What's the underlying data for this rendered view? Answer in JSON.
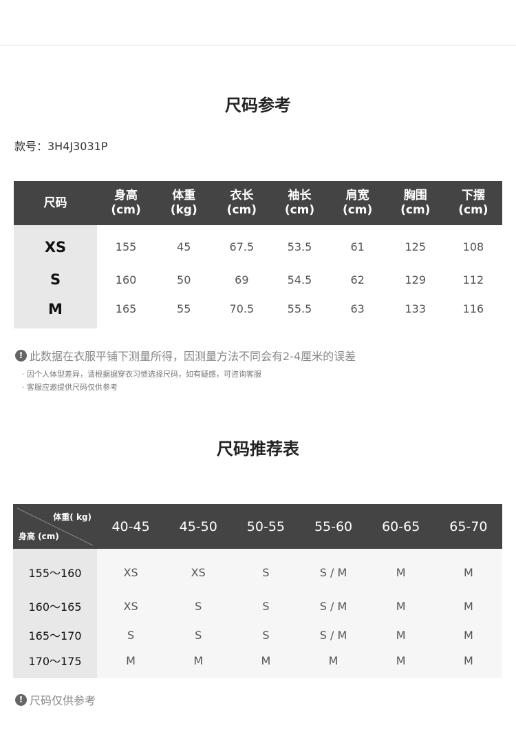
{
  "size_reference": {
    "title": "尺码参考",
    "model_number": "款号：3H4J3031P",
    "headers": [
      [
        "尺码",
        ""
      ],
      [
        "身高",
        "(cm)"
      ],
      [
        "体重",
        "(kg)"
      ],
      [
        "衣长",
        "(cm)"
      ],
      [
        "袖长",
        "(cm)"
      ],
      [
        "肩宽",
        "(cm)"
      ],
      [
        "胸围",
        "(cm)"
      ],
      [
        "下摆",
        "(cm)"
      ]
    ],
    "rows": [
      [
        "XS",
        "155",
        "45",
        "67.5",
        "53.5",
        "61",
        "125",
        "108"
      ],
      [
        "S",
        "160",
        "50",
        "69",
        "54.5",
        "62",
        "129",
        "112"
      ],
      [
        "M",
        "165",
        "55",
        "70.5",
        "55.5",
        "63",
        "133",
        "116"
      ]
    ],
    "note": "此数据在衣服平铺下测量所得，因测量方法不同会有2-4厘米的误差",
    "sub_notes": [
      "因个人体型差异，请根据据穿衣习惯选择尺码，如有疑感，可咨询客服",
      "客服应邀提供尺码仅供参考"
    ]
  },
  "recommend": {
    "title": "尺码推荐表",
    "corner_weight": "体重( kg)",
    "corner_height": "身高 (cm)",
    "weights": [
      "40-45",
      "45-50",
      "50-55",
      "55-60",
      "60-65",
      "65-70"
    ],
    "rows": [
      {
        "height": "155～160",
        "sizes": [
          "XS",
          "XS",
          "S",
          "S / M",
          "M",
          "M"
        ]
      },
      {
        "height": "160～165",
        "sizes": [
          "XS",
          "S",
          "S",
          "S / M",
          "M",
          "M"
        ]
      },
      {
        "height": "165～170",
        "sizes": [
          "S",
          "S",
          "S",
          "S / M",
          "M",
          "M"
        ]
      },
      {
        "height": "170～175",
        "sizes": [
          "M",
          "M",
          "M",
          "M",
          "M",
          "M"
        ]
      }
    ],
    "note": "尺码仅供参考"
  },
  "icons": {
    "note": "exclamation-circle-icon"
  },
  "colors": {
    "header_bg": "#444444",
    "label_col_bg": "#e8e8e8",
    "body_bg": "#f6f6f6"
  }
}
